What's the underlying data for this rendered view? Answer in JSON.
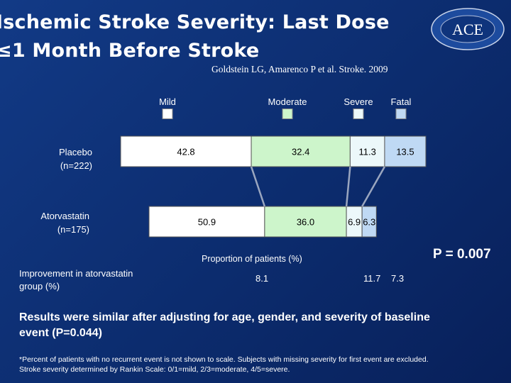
{
  "slide": {
    "title_line1": "Ischemic Stroke Severity: Last Dose",
    "title_line2": "≤1 Month Before Stroke",
    "citation": "Goldstein LG, Amarenco P et al. Stroke. 2009",
    "p_value": "P = 0.007",
    "results_text": "Results were similar after adjusting for age, gender, and severity of baseline event (P=0.044)",
    "footnote": "*Percent of patients with no recurrent event is not shown to scale. Subjects with missing severity for first event are excluded. Stroke severity determined by Rankin Scale: 0/1=mild, 2/3=moderate, 4/5=severe.",
    "logo": {
      "letters": "ACE",
      "ring_text": "PHYSICIANS' ACADEMY FOR CONTINUING EDUCATION"
    }
  },
  "chart_data": {
    "type": "bar",
    "orientation": "horizontal-stacked",
    "title": "Ischemic Stroke Severity: Last Dose ≤1 Month Before Stroke",
    "xlabel": "Proportion of patients (%)",
    "categories": [
      "Mild",
      "Moderate",
      "Severe",
      "Fatal"
    ],
    "colors": [
      "#ffffff",
      "#cdf5cb",
      "#ecf8fa",
      "#bfd9f4"
    ],
    "series": [
      {
        "name": "Placebo",
        "subtitle": "(n=222)",
        "values": [
          42.8,
          32.4,
          11.3,
          13.5
        ]
      },
      {
        "name": "Atorvastatin",
        "subtitle": "(n=175)",
        "values": [
          50.9,
          36.0,
          6.9,
          6.3
        ]
      }
    ],
    "improvement": {
      "label": "Improvement in atorvastatin group (%)",
      "values": [
        "8.1",
        "11.7",
        "7.3"
      ]
    }
  }
}
